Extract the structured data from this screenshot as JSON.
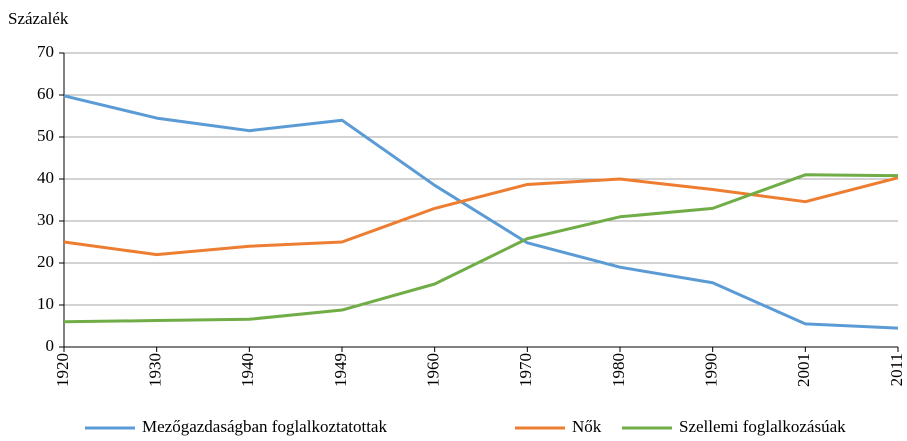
{
  "chart_data": {
    "type": "line",
    "y_label": "Százalék",
    "categories": [
      "1920",
      "1930",
      "1940",
      "1949",
      "1960",
      "1970",
      "1980",
      "1990",
      "2001",
      "2011"
    ],
    "series": [
      {
        "name": "Mezőgazdaságban foglalkoztatottak",
        "color": "#5b9bd5",
        "values": [
          59.8,
          54.5,
          51.5,
          54,
          38.5,
          24.8,
          19,
          15.3,
          5.5,
          4.5
        ]
      },
      {
        "name": "Nők",
        "color": "#ed7d31",
        "values": [
          25,
          22,
          24,
          25,
          33,
          38.7,
          40,
          37.5,
          34.6,
          40.3
        ]
      },
      {
        "name": "Szellemi foglalkozásúak",
        "color": "#70ad47",
        "values": [
          6,
          6.3,
          6.6,
          8.8,
          15,
          25.8,
          31,
          33,
          41,
          40.8
        ]
      }
    ],
    "ylim": [
      0,
      70
    ],
    "yticks": [
      0,
      10,
      20,
      30,
      40,
      50,
      60,
      70
    ],
    "grid": true,
    "legend": "bottom"
  }
}
